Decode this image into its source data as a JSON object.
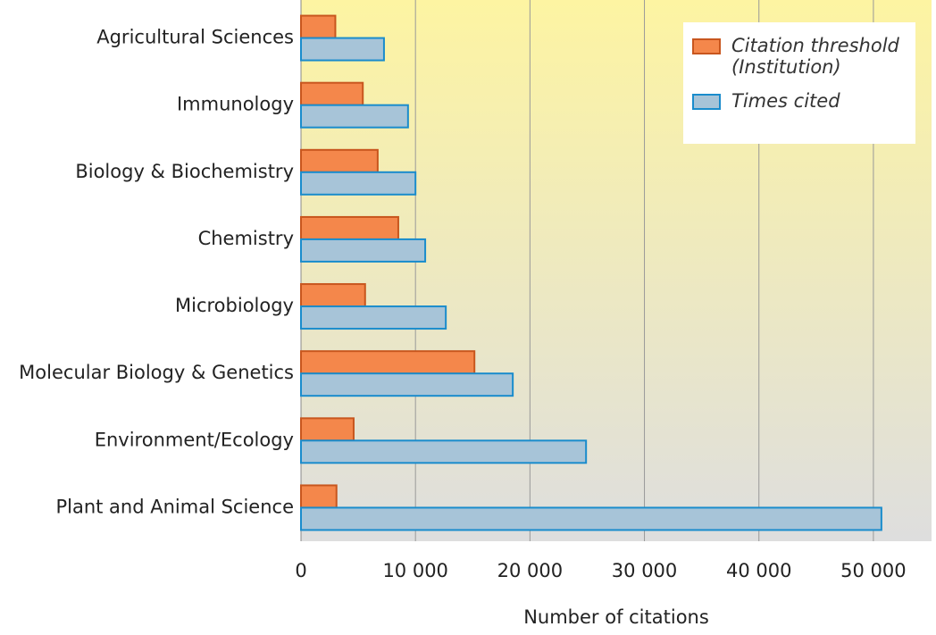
{
  "chart_data": {
    "type": "barh",
    "categories": [
      "Agricultural Sciences",
      "Immunology",
      "Biology & Biochemistry",
      "Chemistry",
      "Microbiology",
      "Molecular Biology & Genetics",
      "Environment/Ecology",
      "Plant and Animal Science"
    ],
    "series": [
      {
        "name": "Citation threshold (Institution)",
        "color": "#f4874b",
        "values": [
          3000,
          5400,
          6700,
          8500,
          5600,
          15150,
          4600,
          3100
        ]
      },
      {
        "name": "Times cited",
        "color": "#a7c4d8",
        "values": [
          7250,
          9350,
          10000,
          10850,
          12650,
          18500,
          24900,
          50700
        ]
      }
    ],
    "xlabel": "Number of citations",
    "xlim": [
      0,
      55000
    ],
    "xticks": [
      0,
      {
        "value": 10000,
        "label": "10 000"
      },
      {
        "value": 20000,
        "label": "20 000"
      },
      {
        "value": 30000,
        "label": "30 000"
      },
      {
        "value": 40000,
        "label": "40 000"
      },
      {
        "value": 50000,
        "label": "50 000"
      }
    ],
    "grid": true,
    "legend": "upper right"
  }
}
